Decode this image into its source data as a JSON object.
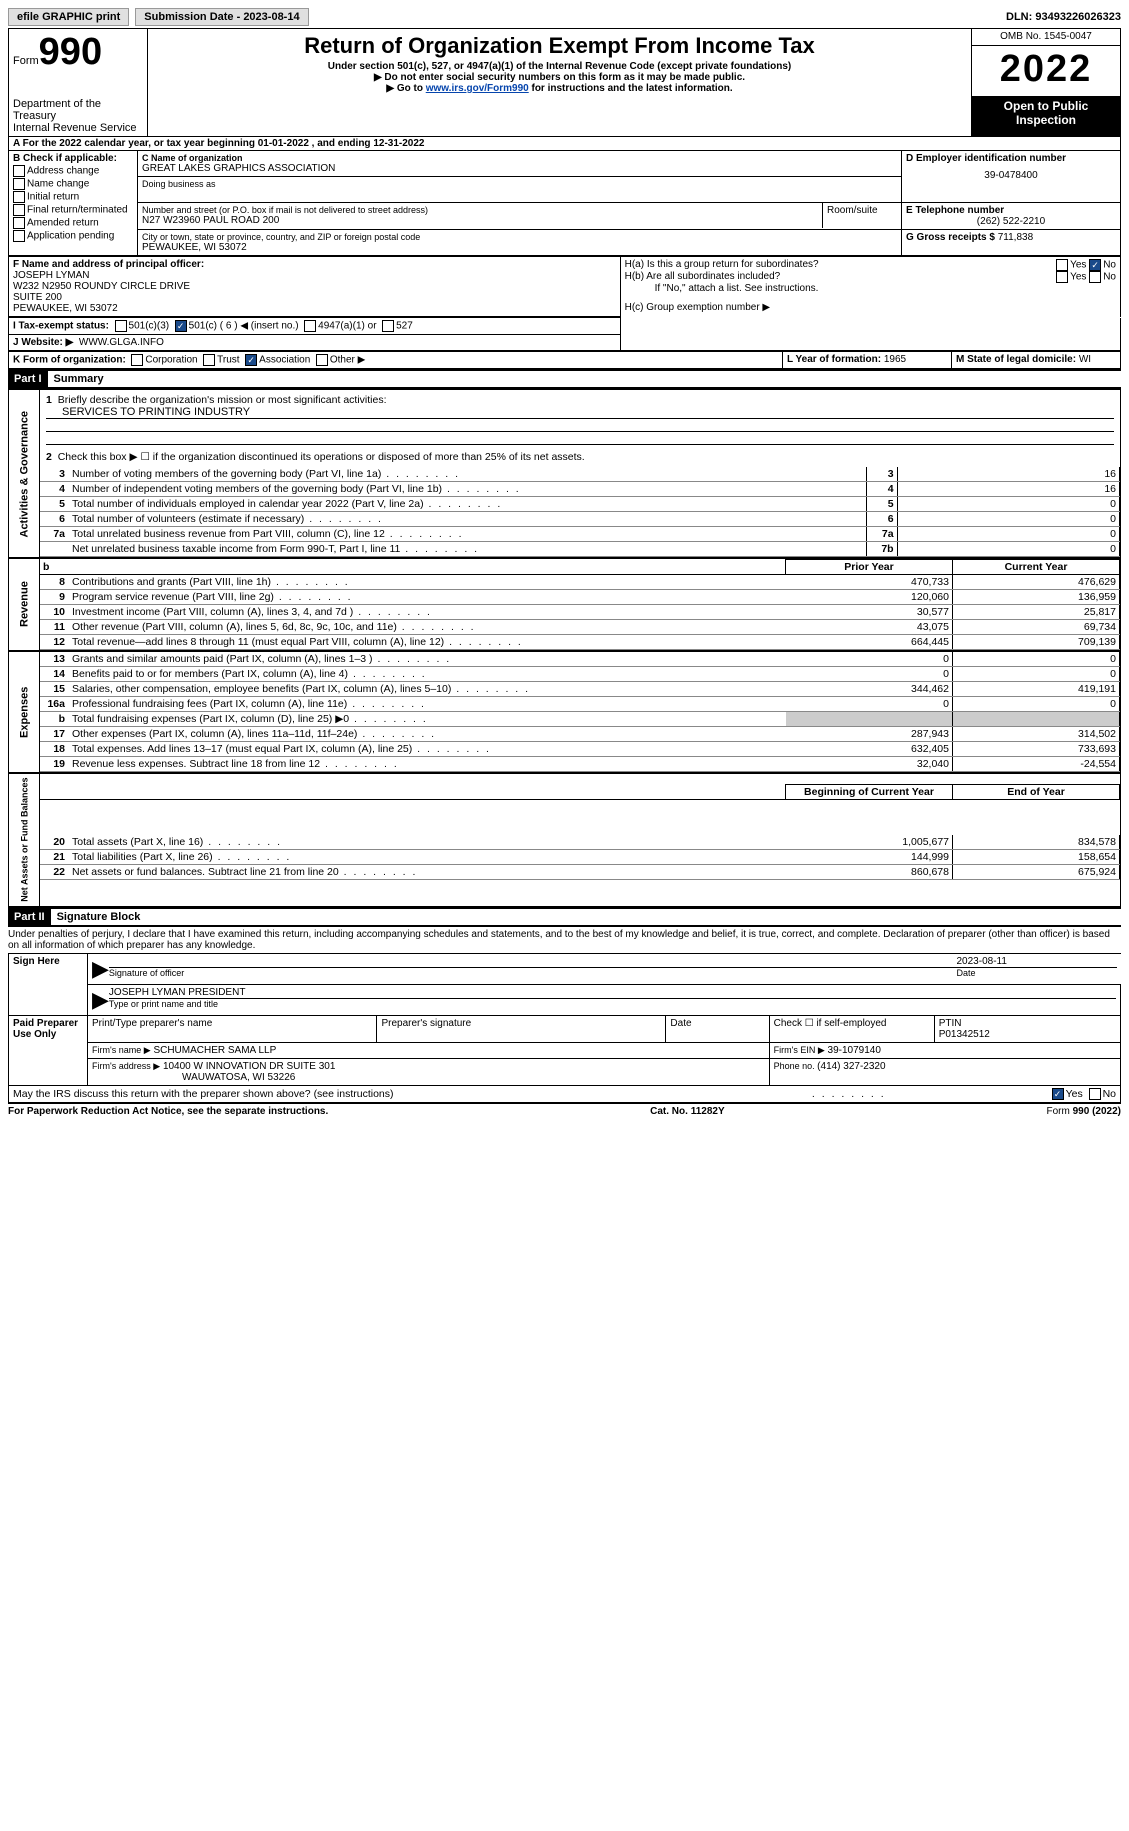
{
  "top": {
    "efile": "efile GRAPHIC print",
    "submission": "Submission Date - 2023-08-14",
    "dln": "DLN: 93493226026323"
  },
  "hdr": {
    "form_word": "Form",
    "form_no": "990",
    "dept1": "Department of the Treasury",
    "dept2": "Internal Revenue Service",
    "title": "Return of Organization Exempt From Income Tax",
    "sub": "Under section 501(c), 527, or 4947(a)(1) of the Internal Revenue Code (except private foundations)",
    "note1": "▶ Do not enter social security numbers on this form as it may be made public.",
    "note2_pre": "▶ Go to ",
    "note2_link": "www.irs.gov/Form990",
    "note2_post": " for instructions and the latest information.",
    "omb": "OMB No. 1545-0047",
    "year": "2022",
    "inspection1": "Open to Public",
    "inspection2": "Inspection"
  },
  "A": {
    "text": "A For the 2022 calendar year, or tax year beginning 01-01-2022    , and ending 12-31-2022"
  },
  "B": {
    "title": "B Check if applicable:",
    "o1": "Address change",
    "o2": "Name change",
    "o3": "Initial return",
    "o4": "Final return/terminated",
    "o5": "Amended return",
    "o6": "Application pending"
  },
  "C": {
    "name_lbl": "C Name of organization",
    "name": "GREAT LAKES GRAPHICS ASSOCIATION",
    "dba_lbl": "Doing business as",
    "street_lbl": "Number and street (or P.O. box if mail is not delivered to street address)",
    "room_lbl": "Room/suite",
    "street": "N27 W23960 PAUL ROAD 200",
    "city_lbl": "City or town, state or province, country, and ZIP or foreign postal code",
    "city": "PEWAUKEE, WI  53072"
  },
  "D": {
    "lbl": "D Employer identification number",
    "val": "39-0478400"
  },
  "E": {
    "lbl": "E Telephone number",
    "val": "(262) 522-2210"
  },
  "G": {
    "lbl": "G Gross receipts $ ",
    "val": "711,838"
  },
  "F": {
    "lbl": "F Name and address of principal officer:",
    "l1": "JOSEPH LYMAN",
    "l2": "W232 N2950 ROUNDY CIRCLE DRIVE",
    "l3": "SUITE 200",
    "l4": "PEWAUKEE, WI  53072"
  },
  "H": {
    "a": "H(a)  Is this a group return for subordinates?",
    "b": "H(b)  Are all subordinates included?",
    "bnote": "If \"No,\" attach a list. See instructions.",
    "c": "H(c)  Group exemption number ▶",
    "yes": "Yes",
    "no": "No"
  },
  "I": {
    "lbl": "I    Tax-exempt status:",
    "o1": "501(c)(3)",
    "o2": "501(c) ( 6 ) ◀ (insert no.)",
    "o3": "4947(a)(1) or",
    "o4": "527"
  },
  "J": {
    "lbl": "J   Website: ▶",
    "val": "WWW.GLGA.INFO"
  },
  "K": {
    "lbl": "K Form of organization:",
    "o1": "Corporation",
    "o2": "Trust",
    "o3": "Association",
    "o4": "Other ▶"
  },
  "L": {
    "lbl": "L Year of formation: ",
    "val": "1965"
  },
  "M": {
    "lbl": "M State of legal domicile: ",
    "val": "WI"
  },
  "partI": {
    "tag": "Part I",
    "title": "Summary"
  },
  "summary": {
    "q1": "Briefly describe the organization's mission or most significant activities:",
    "q1a": "SERVICES TO PRINTING INDUSTRY",
    "q2": "Check this box ▶ ☐ if the organization discontinued its operations or disposed of more than 25% of its net assets.",
    "rows_top": [
      {
        "n": "3",
        "t": "Number of voting members of the governing body (Part VI, line 1a)",
        "k": "3",
        "v": "16"
      },
      {
        "n": "4",
        "t": "Number of independent voting members of the governing body (Part VI, line 1b)",
        "k": "4",
        "v": "16"
      },
      {
        "n": "5",
        "t": "Total number of individuals employed in calendar year 2022 (Part V, line 2a)",
        "k": "5",
        "v": "0"
      },
      {
        "n": "6",
        "t": "Total number of volunteers (estimate if necessary)",
        "k": "6",
        "v": "0"
      },
      {
        "n": "7a",
        "t": "Total unrelated business revenue from Part VIII, column (C), line 12",
        "k": "7a",
        "v": "0"
      },
      {
        "n": "",
        "t": "Net unrelated business taxable income from Form 990-T, Part I, line 11",
        "k": "7b",
        "v": "0"
      }
    ],
    "col_prior": "Prior Year",
    "col_curr": "Current Year",
    "revenue": [
      {
        "n": "8",
        "t": "Contributions and grants (Part VIII, line 1h)",
        "p": "470,733",
        "c": "476,629"
      },
      {
        "n": "9",
        "t": "Program service revenue (Part VIII, line 2g)",
        "p": "120,060",
        "c": "136,959"
      },
      {
        "n": "10",
        "t": "Investment income (Part VIII, column (A), lines 3, 4, and 7d )",
        "p": "30,577",
        "c": "25,817"
      },
      {
        "n": "11",
        "t": "Other revenue (Part VIII, column (A), lines 5, 6d, 8c, 9c, 10c, and 11e)",
        "p": "43,075",
        "c": "69,734"
      },
      {
        "n": "12",
        "t": "Total revenue—add lines 8 through 11 (must equal Part VIII, column (A), line 12)",
        "p": "664,445",
        "c": "709,139"
      }
    ],
    "expenses": [
      {
        "n": "13",
        "t": "Grants and similar amounts paid (Part IX, column (A), lines 1–3 )",
        "p": "0",
        "c": "0"
      },
      {
        "n": "14",
        "t": "Benefits paid to or for members (Part IX, column (A), line 4)",
        "p": "0",
        "c": "0"
      },
      {
        "n": "15",
        "t": "Salaries, other compensation, employee benefits (Part IX, column (A), lines 5–10)",
        "p": "344,462",
        "c": "419,191"
      },
      {
        "n": "16a",
        "t": "Professional fundraising fees (Part IX, column (A), line 11e)",
        "p": "0",
        "c": "0"
      },
      {
        "n": "b",
        "t": "Total fundraising expenses (Part IX, column (D), line 25) ▶0",
        "p": "",
        "c": ""
      },
      {
        "n": "17",
        "t": "Other expenses (Part IX, column (A), lines 11a–11d, 11f–24e)",
        "p": "287,943",
        "c": "314,502"
      },
      {
        "n": "18",
        "t": "Total expenses. Add lines 13–17 (must equal Part IX, column (A), line 25)",
        "p": "632,405",
        "c": "733,693"
      },
      {
        "n": "19",
        "t": "Revenue less expenses. Subtract line 18 from line 12",
        "p": "32,040",
        "c": "-24,554"
      }
    ],
    "col_beg": "Beginning of Current Year",
    "col_end": "End of Year",
    "net": [
      {
        "n": "20",
        "t": "Total assets (Part X, line 16)",
        "p": "1,005,677",
        "c": "834,578"
      },
      {
        "n": "21",
        "t": "Total liabilities (Part X, line 26)",
        "p": "144,999",
        "c": "158,654"
      },
      {
        "n": "22",
        "t": "Net assets or fund balances. Subtract line 21 from line 20",
        "p": "860,678",
        "c": "675,924"
      }
    ]
  },
  "partII": {
    "tag": "Part II",
    "title": "Signature Block"
  },
  "sig": {
    "decl": "Under penalties of perjury, I declare that I have examined this return, including accompanying schedules and statements, and to the best of my knowledge and belief, it is true, correct, and complete. Declaration of preparer (other than officer) is based on all information of which preparer has any knowledge.",
    "sign_here": "Sign Here",
    "sig_of_officer": "Signature of officer",
    "date_val": "2023-08-11",
    "date_lbl": "Date",
    "officer": "JOSEPH LYMAN  PRESIDENT",
    "officer_lbl": "Type or print name and title",
    "paid": "Paid Preparer Use Only",
    "prep_name_lbl": "Print/Type preparer's name",
    "prep_sig_lbl": "Preparer's signature",
    "check_lbl": "Check ☐ if self-employed",
    "ptin_lbl": "PTIN",
    "ptin": "P01342512",
    "firm_name_lbl": "Firm's name    ▶",
    "firm_name": "SCHUMACHER SAMA LLP",
    "firm_ein_lbl": "Firm's EIN ▶",
    "firm_ein": "39-1079140",
    "firm_addr_lbl": "Firm's address ▶",
    "firm_addr1": "10400 W INNOVATION DR SUITE 301",
    "firm_addr2": "WAUWATOSA, WI  53226",
    "phone_lbl": "Phone no. ",
    "phone": "(414) 327-2320",
    "discuss": "May the IRS discuss this return with the preparer shown above? (see instructions)",
    "paperwork": "For Paperwork Reduction Act Notice, see the separate instructions.",
    "cat": "Cat. No. 11282Y",
    "formfoot": "Form 990 (2022)"
  },
  "side_labels": {
    "gov": "Activities & Governance",
    "rev": "Revenue",
    "exp": "Expenses",
    "net": "Net Assets or Fund Balances"
  }
}
